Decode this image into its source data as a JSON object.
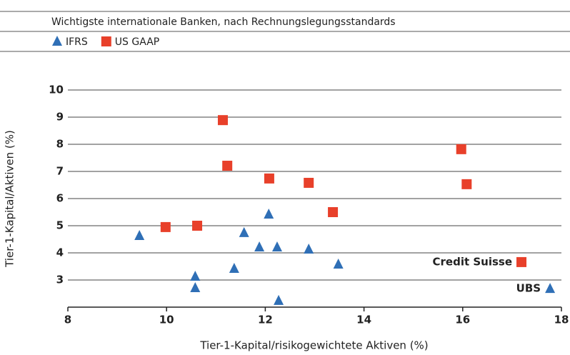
{
  "chart_data": {
    "type": "scatter",
    "subtitle": "Wichtigste internationale Banken, nach Rechnungslegungsstandards",
    "x_label": "Tier-1-Kapital/risikogewichtete Aktiven (%)",
    "y_label": "Tier-1-Kapital/Aktiven (%)",
    "xlim": [
      8,
      18
    ],
    "xticks": [
      8,
      10,
      12,
      14,
      16,
      18
    ],
    "ylim": [
      2,
      10
    ],
    "yticks": [
      3,
      4,
      5,
      6,
      7,
      8,
      9,
      10
    ],
    "grid": true,
    "series": [
      {
        "name": "IFRS",
        "color": "#2f6fb6",
        "marker": "triangle",
        "x": [
          9.45,
          10.58,
          10.58,
          11.37,
          11.57,
          11.88,
          12.07,
          12.24,
          12.27,
          12.88,
          13.48,
          17.77
        ],
        "values": [
          4.63,
          3.13,
          2.71,
          3.42,
          4.74,
          4.21,
          5.42,
          4.21,
          2.24,
          4.13,
          3.58,
          2.68
        ]
      },
      {
        "name": "US GAAP",
        "color": "#e8402a",
        "marker": "square",
        "x": [
          9.98,
          10.62,
          11.14,
          11.23,
          12.08,
          12.88,
          13.37,
          15.97,
          16.08,
          17.19
        ],
        "values": [
          4.95,
          5.0,
          8.89,
          7.21,
          6.74,
          6.58,
          5.5,
          7.82,
          6.53,
          3.66
        ]
      }
    ],
    "annotations": [
      "Credit Suisse",
      "UBS"
    ]
  }
}
